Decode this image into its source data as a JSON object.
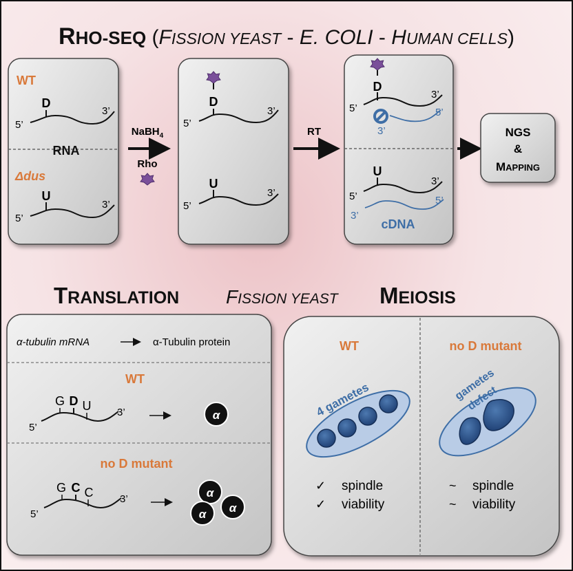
{
  "title": {
    "r": "R",
    "ho": "HO",
    "dash": "-",
    "seq": "SEQ",
    "open": " (",
    "f": "F",
    "ission": "ISSION",
    "y": " YEAST",
    "sep1": " - ",
    "ecoli": "E. COLI",
    "sep2": " - ",
    "h": "H",
    "uman": "UMAN",
    "cells": " CELLS",
    "close": ")"
  },
  "panel1": {
    "wt": "WT",
    "rna": "RNA",
    "dus": "Δdus",
    "top": {
      "base": "D",
      "five": "5’",
      "three": "3’"
    },
    "bottom": {
      "base": "U",
      "five": "5’",
      "three": "3’"
    }
  },
  "step1": {
    "reagent": "NaBH",
    "sub": "4",
    "rho": "Rho"
  },
  "panel2": {
    "top": {
      "base": "D",
      "five": "5’",
      "three": "3’"
    },
    "bottom": {
      "base": "U",
      "five": "5’",
      "three": "3’"
    }
  },
  "step2": {
    "label": "RT"
  },
  "panel3": {
    "top": {
      "base": "D",
      "five": "5’",
      "three": "3’",
      "cdna_five": "5’",
      "cdna_three": "3’"
    },
    "bottom": {
      "base": "U",
      "five": "5’",
      "three": "3’",
      "cdna_five": "5’",
      "cdna_three": "3’"
    },
    "cdna": "cDNA"
  },
  "ngs": {
    "line1": "NGS",
    "line2": "&",
    "line3a": "M",
    "line3b": "APPING"
  },
  "section": {
    "t": "T",
    "ranslation": "RANSLATION",
    "f": "F",
    "ission": "ISSION YEAST",
    "m": "M",
    "eiosis": "EIOSIS"
  },
  "translation": {
    "mrna": "α-tubulin mRNA",
    "protein": "α-Tubulin protein",
    "wt": "WT",
    "wt_bases": [
      "G",
      "D",
      "U"
    ],
    "wt_five": "5’",
    "wt_three": "3’",
    "mutant": "no D mutant",
    "mut_bases": [
      "G",
      "C",
      "C"
    ],
    "mut_five": "5’",
    "mut_three": "3’",
    "alpha": "α"
  },
  "meiosis": {
    "wt": "WT",
    "wt_gametes": "4 gametes",
    "mutant": "no D mutant",
    "mut_gametes_line1": "gametes",
    "mut_gametes_line2": "defect",
    "wt_checks": [
      {
        "mark": "✓",
        "text": "spindle"
      },
      {
        "mark": "✓",
        "text": "viability"
      }
    ],
    "mut_checks": [
      {
        "mark": "~",
        "text": "spindle"
      },
      {
        "mark": "~",
        "text": "viability"
      }
    ]
  },
  "colors": {
    "orange": "#d9793a",
    "blue": "#3e6ea6",
    "purple": "#7a4f9a",
    "panel": "#d4d4d4",
    "dark": "#111111"
  }
}
